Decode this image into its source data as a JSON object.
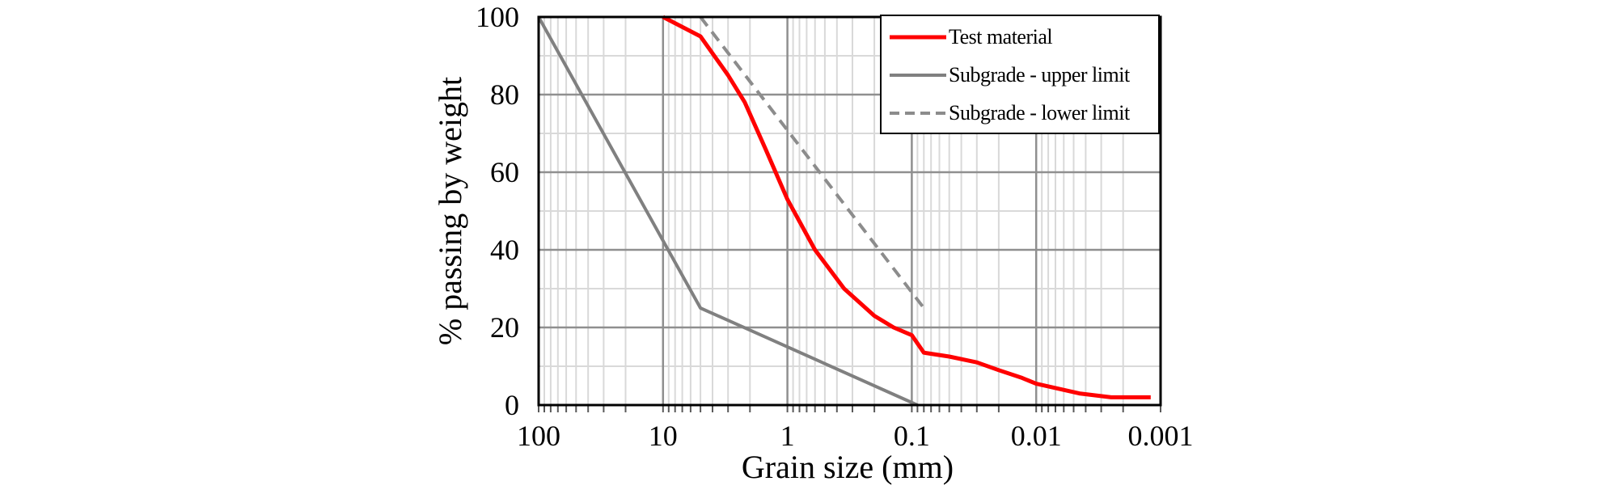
{
  "figure": {
    "background": "#ffffff",
    "border_color": "#000000",
    "major_grid_color": "#8f8f8f",
    "minor_grid_color": "#d9d9d9",
    "tick_mark_color": "#595959"
  },
  "chart_data": {
    "type": "line",
    "title": "",
    "x_axis": {
      "label": "Grain size (mm)",
      "scale": "log",
      "reversed": true,
      "min": 0.001,
      "max": 100,
      "tick_labels": [
        "100",
        "10",
        "1",
        "0.1",
        "0.01",
        "0.001"
      ],
      "tick_values": [
        100,
        10,
        1,
        0.1,
        0.01,
        0.001
      ],
      "minor_grid": "log-decades",
      "grid": true
    },
    "y_axis": {
      "label": "% passing by weight",
      "min": 0,
      "max": 100,
      "tick_labels": [
        "100",
        "80",
        "60",
        "40",
        "20",
        "0"
      ],
      "tick_values": [
        100,
        80,
        60,
        40,
        20,
        0
      ],
      "major_step": 20,
      "minor_step": 10,
      "grid": true
    },
    "legend": {
      "position": "top-right-inside",
      "border": true
    },
    "series": [
      {
        "name": "Test material",
        "color": "#ff0000",
        "style": "solid",
        "width": 5,
        "points": [
          [
            10,
            100
          ],
          [
            5,
            95
          ],
          [
            3,
            85
          ],
          [
            2.2,
            78
          ],
          [
            1.5,
            66
          ],
          [
            1,
            53
          ],
          [
            0.6,
            40
          ],
          [
            0.35,
            30
          ],
          [
            0.2,
            23
          ],
          [
            0.14,
            20
          ],
          [
            0.1,
            18
          ],
          [
            0.08,
            13.5
          ],
          [
            0.05,
            12.5
          ],
          [
            0.03,
            11
          ],
          [
            0.02,
            9
          ],
          [
            0.013,
            7
          ],
          [
            0.01,
            5.5
          ],
          [
            0.0045,
            3
          ],
          [
            0.0025,
            2
          ],
          [
            0.0012,
            2
          ]
        ]
      },
      {
        "name": "Subgrade - upper limit",
        "color": "#808080",
        "style": "solid",
        "width": 4,
        "points": [
          [
            100,
            100
          ],
          [
            5,
            25
          ],
          [
            0.09,
            0
          ]
        ]
      },
      {
        "name": "Subgrade - lower limit",
        "color": "#8c8c8c",
        "style": "dashed",
        "width": 4,
        "points": [
          [
            5,
            100
          ],
          [
            0.08,
            25
          ]
        ]
      }
    ]
  }
}
